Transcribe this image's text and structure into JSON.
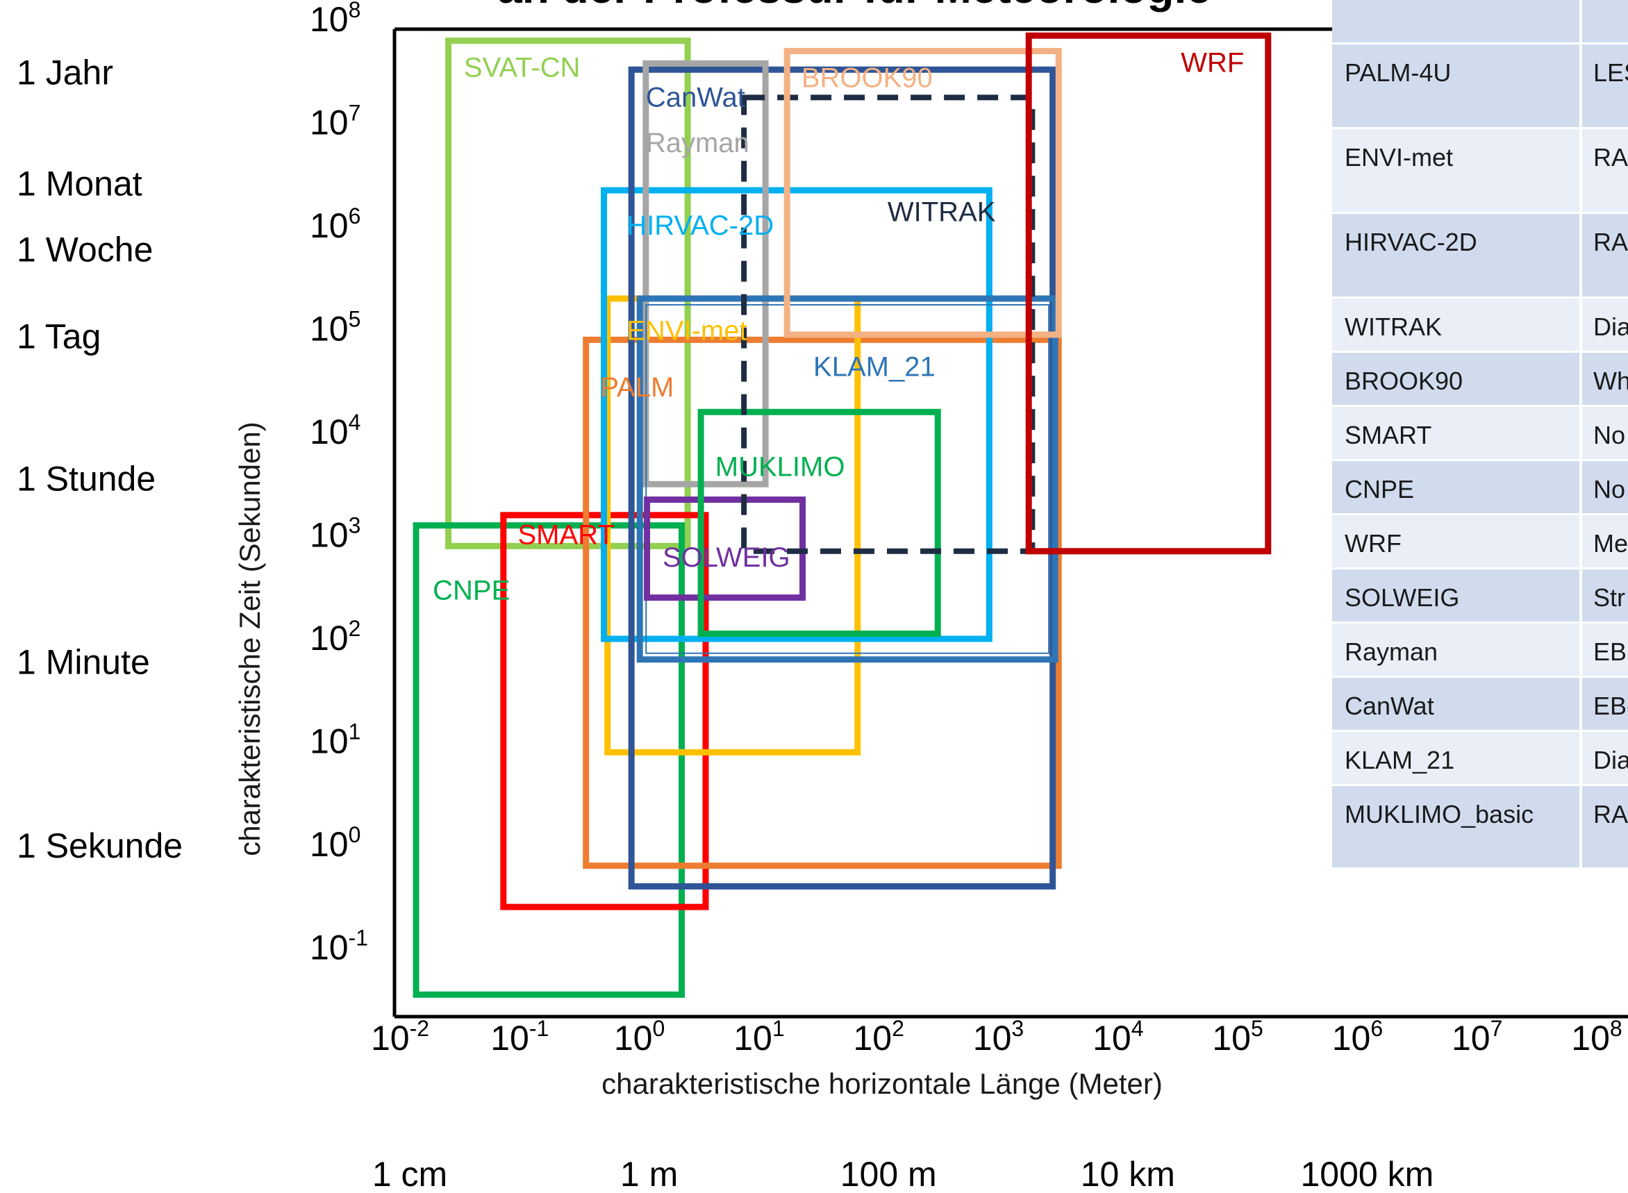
{
  "chart_data": {
    "type": "range-boxes",
    "title": "an der Professur für Meteorologie",
    "xlabel": "charakteristische horizontale Länge  (Meter)",
    "ylabel": "charakteristische Zeit  (Sekunden)",
    "x_scale": "log10",
    "y_scale": "log10",
    "xlim_exp": [
      -2,
      8
    ],
    "ylim_exp": [
      -1.7,
      8
    ],
    "x_ticks": [
      {
        "base": "10",
        "exp": "-2",
        "value": -2
      },
      {
        "base": "10",
        "exp": "-1",
        "value": -1
      },
      {
        "base": "10",
        "exp": "0",
        "value": 0
      },
      {
        "base": "10",
        "exp": "1",
        "value": 1
      },
      {
        "base": "10",
        "exp": "2",
        "value": 2
      },
      {
        "base": "10",
        "exp": "3",
        "value": 3
      },
      {
        "base": "10",
        "exp": "4",
        "value": 4
      },
      {
        "base": "10",
        "exp": "5",
        "value": 5
      },
      {
        "base": "10",
        "exp": "6",
        "value": 6
      },
      {
        "base": "10",
        "exp": "7",
        "value": 7
      },
      {
        "base": "10",
        "exp": "8",
        "value": 8
      }
    ],
    "y_ticks": [
      {
        "base": "10",
        "exp": "8",
        "value": 8
      },
      {
        "base": "10",
        "exp": "7",
        "value": 7
      },
      {
        "base": "10",
        "exp": "6",
        "value": 6
      },
      {
        "base": "10",
        "exp": "5",
        "value": 5
      },
      {
        "base": "10",
        "exp": "4",
        "value": 4
      },
      {
        "base": "10",
        "exp": "3",
        "value": 3
      },
      {
        "base": "10",
        "exp": "2",
        "value": 2
      },
      {
        "base": "10",
        "exp": "1",
        "value": 1
      },
      {
        "base": "10",
        "exp": "0",
        "value": 0
      },
      {
        "base": "10",
        "exp": "-1",
        "value": -1
      }
    ],
    "time_labels": [
      {
        "text": "1 Jahr",
        "value": 7.5
      },
      {
        "text": "1 Monat",
        "value": 6.42
      },
      {
        "text": "1 Woche",
        "value": 5.78
      },
      {
        "text": "1 Tag",
        "value": 4.94
      },
      {
        "text": "1 Stunde",
        "value": 3.56
      },
      {
        "text": "1 Minute",
        "value": 1.78
      },
      {
        "text": "1 Sekunde",
        "value": 0
      }
    ],
    "length_labels": [
      {
        "text": "1 cm",
        "value": -2
      },
      {
        "text": "1 m",
        "value": 0
      },
      {
        "text": "100 m",
        "value": 2
      },
      {
        "text": "10 km",
        "value": 4
      },
      {
        "text": "1000 km",
        "value": 6
      }
    ],
    "series": [
      {
        "name": "SVAT-CN",
        "x": [
          -1.55,
          0.45
        ],
        "y": [
          2.9,
          7.8
        ],
        "color": "#92d050",
        "dash": false,
        "label_at": [
          -1.42,
          7.45
        ]
      },
      {
        "name": "CNPE",
        "x": [
          -1.82,
          0.4
        ],
        "y": [
          -1.45,
          3.1
        ],
        "color": "#00b050",
        "dash": false,
        "label_at": [
          -1.68,
          2.38
        ]
      },
      {
        "name": "SMART",
        "x": [
          -1.09,
          0.6
        ],
        "y": [
          -0.6,
          3.2
        ],
        "color": "#ff0000",
        "dash": false,
        "label_at": [
          -0.97,
          2.92
        ]
      },
      {
        "name": "PALM",
        "x": [
          -0.4,
          3.55
        ],
        "y": [
          -0.2,
          4.9
        ],
        "color": "#ed7d31",
        "dash": false,
        "label_at": [
          -0.28,
          4.35
        ]
      },
      {
        "name": "ENVI-met",
        "x": [
          -0.22,
          1.87
        ],
        "y": [
          0.9,
          5.3
        ],
        "color": "#ffc000",
        "dash": false,
        "label_at": [
          -0.06,
          4.9
        ]
      },
      {
        "name": "HIRVAC-2D",
        "x": [
          -0.25,
          2.97
        ],
        "y": [
          2.0,
          6.35
        ],
        "color": "#00b0f0",
        "dash": false,
        "label_at": [
          -0.06,
          5.92
        ]
      },
      {
        "name": "CanWat",
        "x": [
          -0.02,
          3.5
        ],
        "y": [
          -0.4,
          7.52
        ],
        "color": "#2f5597",
        "dash": false,
        "label_at": [
          0.1,
          7.16
        ]
      },
      {
        "name": "Rayman",
        "x": [
          0.1,
          1.1
        ],
        "y": [
          3.5,
          7.58
        ],
        "color": "#a6a6a6",
        "dash": false,
        "label_at": [
          0.1,
          6.72
        ]
      },
      {
        "name": "KLAM_21",
        "x": [
          0.05,
          3.52
        ],
        "y": [
          1.8,
          5.3
        ],
        "color": "#2e75b6",
        "dash": false,
        "label_at": [
          1.5,
          4.55
        ]
      },
      {
        "name": "SOLWEIG",
        "x": [
          0.11,
          1.41
        ],
        "y": [
          2.4,
          3.35
        ],
        "color": "#7030a0",
        "dash": false,
        "label_at": [
          0.24,
          2.7
        ]
      },
      {
        "name": "MUKLIMO",
        "x": [
          0.56,
          2.54
        ],
        "y": [
          2.05,
          4.2
        ],
        "color": "#00b050",
        "dash": false,
        "label_at": [
          0.68,
          3.58
        ]
      },
      {
        "name": "WITRAK",
        "x": [
          0.92,
          3.33
        ],
        "y": [
          2.85,
          7.25
        ],
        "color": "#1f2d44",
        "dash": true,
        "label_at": [
          2.12,
          6.05
        ]
      },
      {
        "name": "BROOK90",
        "x": [
          1.28,
          3.55
        ],
        "y": [
          4.95,
          7.7
        ],
        "color": "#f4b183",
        "dash": false,
        "label_at": [
          1.4,
          7.35
        ]
      },
      {
        "name": "WRF",
        "x": [
          3.3,
          5.3
        ],
        "y": [
          2.85,
          7.85
        ],
        "color": "#c00000",
        "dash": false,
        "label_at": [
          5.1,
          7.5
        ]
      }
    ]
  },
  "table": {
    "rows": [
      {
        "model": "",
        "info": ""
      },
      {
        "model": "PALM-4U",
        "info": "LES"
      },
      {
        "model": "ENVI-met",
        "info": "RA"
      },
      {
        "model": "HIRVAC-2D",
        "info": "RA"
      },
      {
        "model": "WITRAK",
        "info": "Dia"
      },
      {
        "model": "BROOK90",
        "info": "Wh"
      },
      {
        "model": "SMART",
        "info": "No"
      },
      {
        "model": "CNPE",
        "info": "No"
      },
      {
        "model": "WRF",
        "info": "Me"
      },
      {
        "model": "SOLWEIG",
        "info": "Str"
      },
      {
        "model": "Rayman",
        "info": "EB"
      },
      {
        "model": "CanWat",
        "info": "EB-"
      },
      {
        "model": "KLAM_21",
        "info": "Dia"
      },
      {
        "model": "MUKLIMO_basic",
        "info": "RA"
      }
    ]
  }
}
